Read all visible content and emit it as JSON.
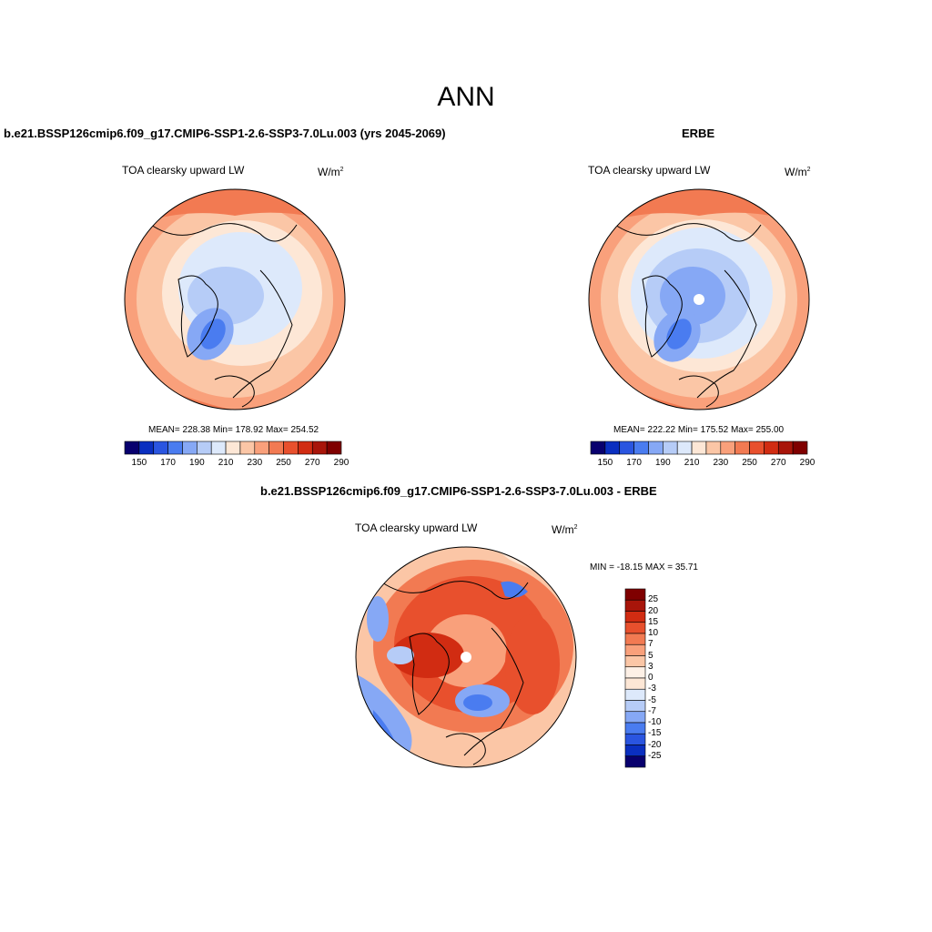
{
  "title": "ANN",
  "top_left": {
    "panel_title": "b.e21.BSSP126cmip6.f09_g17.CMIP6-SSP1-2.6-SSP3-7.0Lu.003 (yrs 2045-2069)",
    "variable": "TOA clearsky upward LW",
    "units": "W/m",
    "units_sup": "2",
    "stats": "MEAN= 228.38  Min= 178.92  Max= 254.52",
    "colorbar_ticks": [
      "150",
      "170",
      "190",
      "210",
      "230",
      "250",
      "270",
      "290"
    ]
  },
  "top_right": {
    "panel_title": "ERBE",
    "variable": "TOA clearsky upward LW",
    "units": "W/m",
    "units_sup": "2",
    "stats": "MEAN= 222.22  Min= 175.52  Max= 255.00",
    "colorbar_ticks": [
      "150",
      "170",
      "190",
      "210",
      "230",
      "250",
      "270",
      "290"
    ]
  },
  "bottom": {
    "panel_title": "b.e21.BSSP126cmip6.f09_g17.CMIP6-SSP1-2.6-SSP3-7.0Lu.003 - ERBE",
    "variable": "TOA clearsky upward LW",
    "units": "W/m",
    "units_sup": "2",
    "stats": "MIN = -18.15 MAX =  35.71",
    "colorbar_ticks": [
      "25",
      "20",
      "15",
      "10",
      "7",
      "5",
      "3",
      "0",
      "-3",
      "-5",
      "-7",
      "-10",
      "-15",
      "-20",
      "-25"
    ]
  },
  "colors": {
    "abs_scale": [
      "#08006e",
      "#0a2fc0",
      "#2a55e0",
      "#4a7cf0",
      "#86a8f5",
      "#b6ccf7",
      "#dde9fb",
      "#fde7d6",
      "#fbc6a6",
      "#f9a07b",
      "#f27a52",
      "#e8502d",
      "#d12c12",
      "#a8150a",
      "#7f0000"
    ],
    "diff_scale": [
      "#7f0000",
      "#a8150a",
      "#d12c12",
      "#e8502d",
      "#f27a52",
      "#f9a07b",
      "#fbc6a6",
      "#fde7d6",
      "#dde9fb",
      "#b6ccf7",
      "#86a8f5",
      "#4a7cf0",
      "#2a55e0",
      "#0a2fc0",
      "#08006e"
    ]
  }
}
